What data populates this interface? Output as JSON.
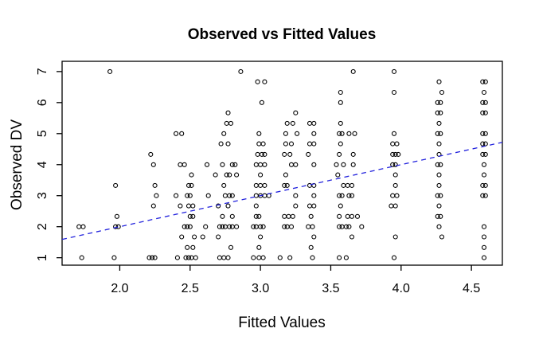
{
  "title": "Observed vs Fitted Values",
  "colors": {
    "background": "#ffffff",
    "points": "#000000",
    "axis": "#000000",
    "reference_line": "#2222dd"
  },
  "chart_data": {
    "type": "scatter",
    "title": "Observed vs Fitted Values",
    "xlabel": "Fitted Values",
    "ylabel": "Observed DV",
    "xlim": [
      1.59,
      4.72
    ],
    "ylim": [
      0.76,
      7.33
    ],
    "x_ticks": [
      2.0,
      2.5,
      3.0,
      3.5,
      4.0,
      4.5
    ],
    "x_tick_labels": [
      "2.0",
      "2.5",
      "3.0",
      "3.5",
      "4.0",
      "4.5"
    ],
    "y_ticks": [
      1,
      2,
      3,
      4,
      5,
      6,
      7
    ],
    "y_tick_labels": [
      "1",
      "2",
      "3",
      "4",
      "5",
      "6",
      "7"
    ],
    "y_tick_labels_rotated": true,
    "grid": false,
    "legend": null,
    "point_style": {
      "shape": "open-circle",
      "color": "#000000",
      "radius": 2.5
    },
    "reference_line": {
      "description": "identity line y = x",
      "style": "dashed",
      "color": "#2222dd",
      "from": [
        1.59,
        1.59
      ],
      "to": [
        4.72,
        4.72
      ]
    },
    "points": [
      [
        1.71,
        2
      ],
      [
        1.74,
        2
      ],
      [
        1.73,
        1
      ],
      [
        1.93,
        7
      ],
      [
        1.97,
        3.33
      ],
      [
        1.98,
        2.33
      ],
      [
        1.97,
        2
      ],
      [
        1.99,
        2
      ],
      [
        1.96,
        1
      ],
      [
        2.22,
        4.33
      ],
      [
        2.24,
        4
      ],
      [
        2.25,
        3.33
      ],
      [
        2.26,
        3
      ],
      [
        2.24,
        2.67
      ],
      [
        2.21,
        1
      ],
      [
        2.23,
        1
      ],
      [
        2.25,
        1
      ],
      [
        2.4,
        5
      ],
      [
        2.44,
        5
      ],
      [
        2.43,
        4
      ],
      [
        2.46,
        4
      ],
      [
        2.51,
        3.67
      ],
      [
        2.49,
        3.33
      ],
      [
        2.51,
        3.33
      ],
      [
        2.4,
        3
      ],
      [
        2.48,
        3
      ],
      [
        2.5,
        3
      ],
      [
        2.43,
        2.67
      ],
      [
        2.49,
        2.67
      ],
      [
        2.52,
        2.67
      ],
      [
        2.5,
        2.33
      ],
      [
        2.52,
        2.33
      ],
      [
        2.46,
        2
      ],
      [
        2.48,
        2
      ],
      [
        2.5,
        2
      ],
      [
        2.44,
        1.67
      ],
      [
        2.53,
        1.67
      ],
      [
        2.48,
        1.33
      ],
      [
        2.52,
        1.33
      ],
      [
        2.41,
        1
      ],
      [
        2.47,
        1
      ],
      [
        2.49,
        1
      ],
      [
        2.51,
        1
      ],
      [
        2.54,
        1
      ],
      [
        2.77,
        5.67
      ],
      [
        2.76,
        5.33
      ],
      [
        2.79,
        5.33
      ],
      [
        2.74,
        5
      ],
      [
        2.72,
        4.67
      ],
      [
        2.77,
        4.67
      ],
      [
        2.62,
        4
      ],
      [
        2.73,
        4
      ],
      [
        2.8,
        4
      ],
      [
        2.82,
        4
      ],
      [
        2.68,
        3.67
      ],
      [
        2.76,
        3.67
      ],
      [
        2.78,
        3.67
      ],
      [
        2.83,
        3.67
      ],
      [
        2.74,
        3.33
      ],
      [
        2.63,
        3
      ],
      [
        2.75,
        3
      ],
      [
        2.78,
        3
      ],
      [
        2.8,
        3
      ],
      [
        2.7,
        2.67
      ],
      [
        2.77,
        2.67
      ],
      [
        2.73,
        2.33
      ],
      [
        2.8,
        2.33
      ],
      [
        2.61,
        2
      ],
      [
        2.71,
        2
      ],
      [
        2.73,
        2
      ],
      [
        2.75,
        2
      ],
      [
        2.78,
        2
      ],
      [
        2.8,
        2
      ],
      [
        2.83,
        2
      ],
      [
        2.59,
        1.67
      ],
      [
        2.7,
        1.67
      ],
      [
        2.79,
        1.33
      ],
      [
        2.71,
        1
      ],
      [
        2.74,
        1
      ],
      [
        2.77,
        1
      ],
      [
        2.86,
        7
      ],
      [
        2.98,
        6.67
      ],
      [
        3.03,
        6.67
      ],
      [
        3.01,
        6
      ],
      [
        2.99,
        5
      ],
      [
        2.99,
        4.67
      ],
      [
        3.02,
        4.67
      ],
      [
        2.98,
        4.33
      ],
      [
        3.01,
        4.33
      ],
      [
        3.03,
        4.33
      ],
      [
        2.97,
        4
      ],
      [
        3.0,
        4
      ],
      [
        3.03,
        4
      ],
      [
        3.0,
        3.67
      ],
      [
        2.97,
        3.33
      ],
      [
        3.0,
        3.33
      ],
      [
        3.03,
        3.33
      ],
      [
        2.97,
        3
      ],
      [
        3.0,
        3
      ],
      [
        3.03,
        3
      ],
      [
        3.06,
        3
      ],
      [
        2.97,
        2.67
      ],
      [
        2.97,
        2.33
      ],
      [
        2.99,
        2.33
      ],
      [
        2.95,
        2
      ],
      [
        2.97,
        2
      ],
      [
        3.0,
        2
      ],
      [
        3.02,
        2
      ],
      [
        3.0,
        1.67
      ],
      [
        2.99,
        1.33
      ],
      [
        2.95,
        1
      ],
      [
        2.99,
        1
      ],
      [
        3.02,
        1
      ],
      [
        3.25,
        5.67
      ],
      [
        3.19,
        5.33
      ],
      [
        3.23,
        5.33
      ],
      [
        3.18,
        5
      ],
      [
        3.26,
        5
      ],
      [
        3.18,
        4.67
      ],
      [
        3.22,
        4.67
      ],
      [
        3.17,
        4.33
      ],
      [
        3.21,
        4.33
      ],
      [
        3.22,
        4
      ],
      [
        3.25,
        4
      ],
      [
        3.18,
        3.67
      ],
      [
        3.17,
        3.33
      ],
      [
        3.19,
        3.33
      ],
      [
        3.25,
        3
      ],
      [
        3.25,
        2.67
      ],
      [
        3.17,
        2.33
      ],
      [
        3.2,
        2.33
      ],
      [
        3.23,
        2.33
      ],
      [
        3.17,
        2
      ],
      [
        3.19,
        2
      ],
      [
        3.22,
        2
      ],
      [
        3.14,
        1
      ],
      [
        3.21,
        1
      ],
      [
        3.35,
        5.33
      ],
      [
        3.38,
        5.33
      ],
      [
        3.38,
        5
      ],
      [
        3.35,
        4.67
      ],
      [
        3.38,
        4.67
      ],
      [
        3.34,
        4.33
      ],
      [
        3.38,
        4
      ],
      [
        3.35,
        3.33
      ],
      [
        3.38,
        3.33
      ],
      [
        3.38,
        3
      ],
      [
        3.35,
        2.67
      ],
      [
        3.38,
        2.67
      ],
      [
        3.36,
        2.33
      ],
      [
        3.34,
        2
      ],
      [
        3.37,
        2
      ],
      [
        3.38,
        1.67
      ],
      [
        3.36,
        1.33
      ],
      [
        3.37,
        1
      ],
      [
        3.66,
        7
      ],
      [
        3.57,
        6.33
      ],
      [
        3.57,
        6
      ],
      [
        3.57,
        5.33
      ],
      [
        3.56,
        5
      ],
      [
        3.58,
        5
      ],
      [
        3.63,
        5
      ],
      [
        3.67,
        5
      ],
      [
        3.57,
        4.67
      ],
      [
        3.56,
        4.33
      ],
      [
        3.66,
        4.33
      ],
      [
        3.54,
        4
      ],
      [
        3.59,
        4
      ],
      [
        3.66,
        4
      ],
      [
        3.55,
        3.67
      ],
      [
        3.59,
        3.33
      ],
      [
        3.62,
        3.33
      ],
      [
        3.65,
        3.33
      ],
      [
        3.56,
        3
      ],
      [
        3.58,
        3
      ],
      [
        3.63,
        3
      ],
      [
        3.65,
        3
      ],
      [
        3.57,
        2.67
      ],
      [
        3.56,
        2.33
      ],
      [
        3.62,
        2.33
      ],
      [
        3.65,
        2.33
      ],
      [
        3.69,
        2.33
      ],
      [
        3.56,
        2
      ],
      [
        3.58,
        2
      ],
      [
        3.61,
        2
      ],
      [
        3.63,
        2
      ],
      [
        3.72,
        2
      ],
      [
        3.65,
        1.67
      ],
      [
        3.56,
        1
      ],
      [
        3.61,
        1
      ],
      [
        3.95,
        7
      ],
      [
        3.95,
        6.33
      ],
      [
        3.95,
        5
      ],
      [
        3.94,
        4.67
      ],
      [
        3.97,
        4.67
      ],
      [
        3.94,
        4.33
      ],
      [
        3.96,
        4.33
      ],
      [
        3.98,
        4.33
      ],
      [
        3.94,
        4
      ],
      [
        3.96,
        4
      ],
      [
        3.96,
        3.67
      ],
      [
        3.96,
        3.33
      ],
      [
        3.94,
        3
      ],
      [
        3.97,
        3
      ],
      [
        3.93,
        2.67
      ],
      [
        3.96,
        2.67
      ],
      [
        3.96,
        1.67
      ],
      [
        3.95,
        1
      ],
      [
        4.27,
        6.67
      ],
      [
        4.29,
        6.33
      ],
      [
        4.26,
        6
      ],
      [
        4.28,
        6
      ],
      [
        4.26,
        5.67
      ],
      [
        4.28,
        5.67
      ],
      [
        4.27,
        5.33
      ],
      [
        4.26,
        5
      ],
      [
        4.28,
        5
      ],
      [
        4.27,
        4.67
      ],
      [
        4.27,
        4.33
      ],
      [
        4.26,
        4
      ],
      [
        4.28,
        4
      ],
      [
        4.27,
        3.67
      ],
      [
        4.27,
        3.33
      ],
      [
        4.26,
        3
      ],
      [
        4.28,
        3
      ],
      [
        4.27,
        2.67
      ],
      [
        4.26,
        2.33
      ],
      [
        4.28,
        2.33
      ],
      [
        4.27,
        2
      ],
      [
        4.29,
        1.67
      ],
      [
        4.58,
        6.67
      ],
      [
        4.6,
        6.67
      ],
      [
        4.59,
        6.33
      ],
      [
        4.58,
        6
      ],
      [
        4.6,
        6
      ],
      [
        4.58,
        5.67
      ],
      [
        4.6,
        5.67
      ],
      [
        4.58,
        5
      ],
      [
        4.6,
        5
      ],
      [
        4.58,
        4.67
      ],
      [
        4.6,
        4.67
      ],
      [
        4.58,
        4.33
      ],
      [
        4.6,
        4.33
      ],
      [
        4.59,
        4
      ],
      [
        4.59,
        3.67
      ],
      [
        4.58,
        3.33
      ],
      [
        4.6,
        3.33
      ],
      [
        4.58,
        3
      ],
      [
        4.6,
        3
      ],
      [
        4.59,
        2
      ],
      [
        4.59,
        1.67
      ],
      [
        4.59,
        1.33
      ],
      [
        4.59,
        1
      ]
    ]
  }
}
